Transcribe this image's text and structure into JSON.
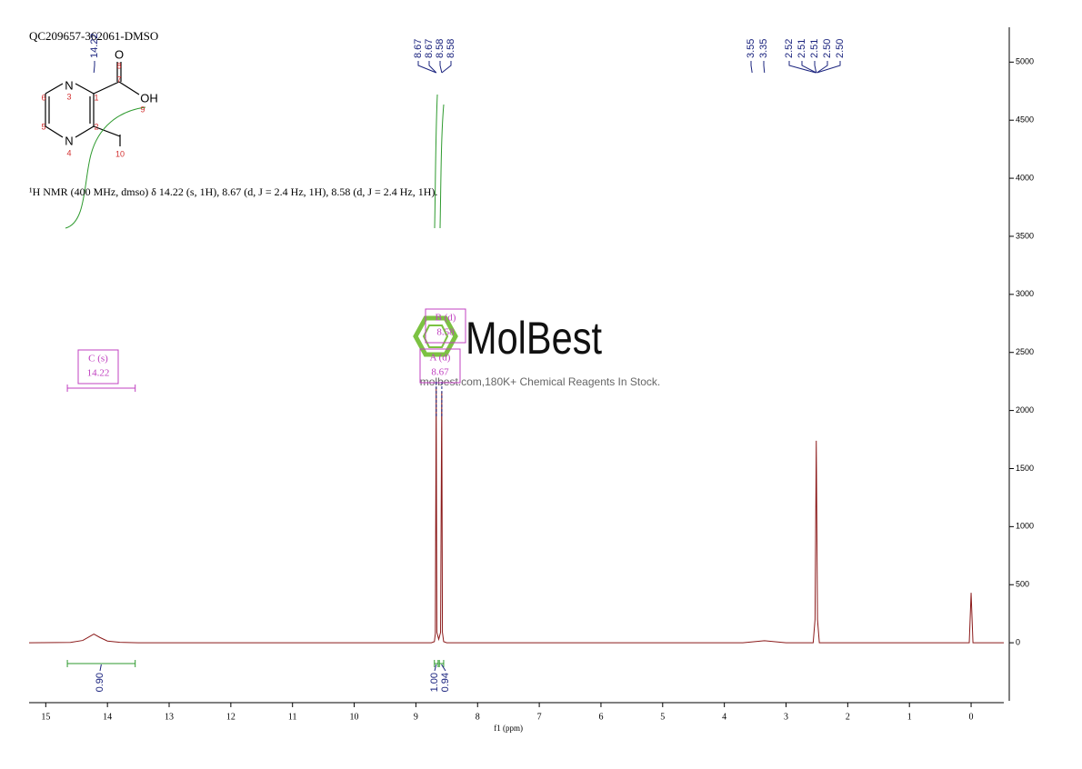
{
  "chart_data": {
    "type": "line",
    "title": "QC209657-362061-DMSO",
    "x_label": "f1 (ppm)",
    "xlim": [
      15.27,
      -0.53
    ],
    "xticks": [
      15,
      14,
      13,
      12,
      11,
      10,
      9,
      8,
      7,
      6,
      5,
      4,
      3,
      2,
      1,
      0
    ],
    "ylim": [
      -500,
      5300
    ],
    "yticks": [
      0,
      500,
      1000,
      1500,
      2000,
      2500,
      3000,
      3500,
      4000,
      4500,
      5000
    ],
    "x": [
      15.27,
      14.6,
      14.4,
      14.3,
      14.22,
      14.12,
      14.0,
      13.8,
      13.5,
      8.75,
      8.7,
      8.685,
      8.671,
      8.66,
      8.63,
      8.6,
      8.581,
      8.57,
      8.55,
      8.5,
      3.7,
      3.35,
      3.0,
      2.56,
      2.53,
      2.51,
      2.49,
      2.46,
      0.03,
      0.0,
      -0.03,
      -0.53
    ],
    "series": [
      {
        "color": "#8b1a1a",
        "values": [
          0,
          3,
          20,
          50,
          75,
          45,
          15,
          4,
          0,
          0,
          10,
          80,
          2200,
          90,
          30,
          90,
          2160,
          90,
          10,
          0,
          0,
          18,
          0,
          0,
          200,
          1740,
          200,
          0,
          0,
          430,
          0,
          0
        ]
      }
    ],
    "peak_labels": [
      14.22,
      8.67,
      8.67,
      8.58,
      8.58,
      3.55,
      3.35,
      2.52,
      2.51,
      2.51,
      {
        "value": 2.5,
        "label": "2.50"
      },
      {
        "value": 2.5,
        "label": "2.50"
      }
    ],
    "multiplets": [
      {
        "name": "C (s)",
        "shift": 14.22,
        "range": [
          14.65,
          13.55
        ]
      },
      {
        "name": "B (d)",
        "shift": 8.58
      },
      {
        "name": "A (d)",
        "shift": 8.67
      }
    ],
    "integrals": {
      "ranges": [
        [
          14.65,
          13.55
        ],
        [
          8.7,
          8.64
        ],
        [
          8.62,
          8.55
        ]
      ],
      "values": [
        0.9,
        1.0,
        0.94
      ],
      "value_labels": [
        "0.90",
        "1.00",
        "0.94"
      ]
    },
    "description": "¹H NMR (400 MHz, dmso) δ 14.22 (s, 1H), 8.67 (d, J = 2.4 Hz, 1H), 8.58 (d, J = 2.4 Hz, 1H).",
    "structure": {
      "atoms": [
        "O",
        "OH",
        "N",
        "N"
      ],
      "locants": [
        "8",
        "7",
        "9",
        "1",
        "2",
        "3",
        "4",
        "5",
        "6",
        "10"
      ]
    },
    "watermark": {
      "brand": "MolBest",
      "tagline": "molbest.com,180K+ Chemical Reagents In Stock."
    }
  }
}
